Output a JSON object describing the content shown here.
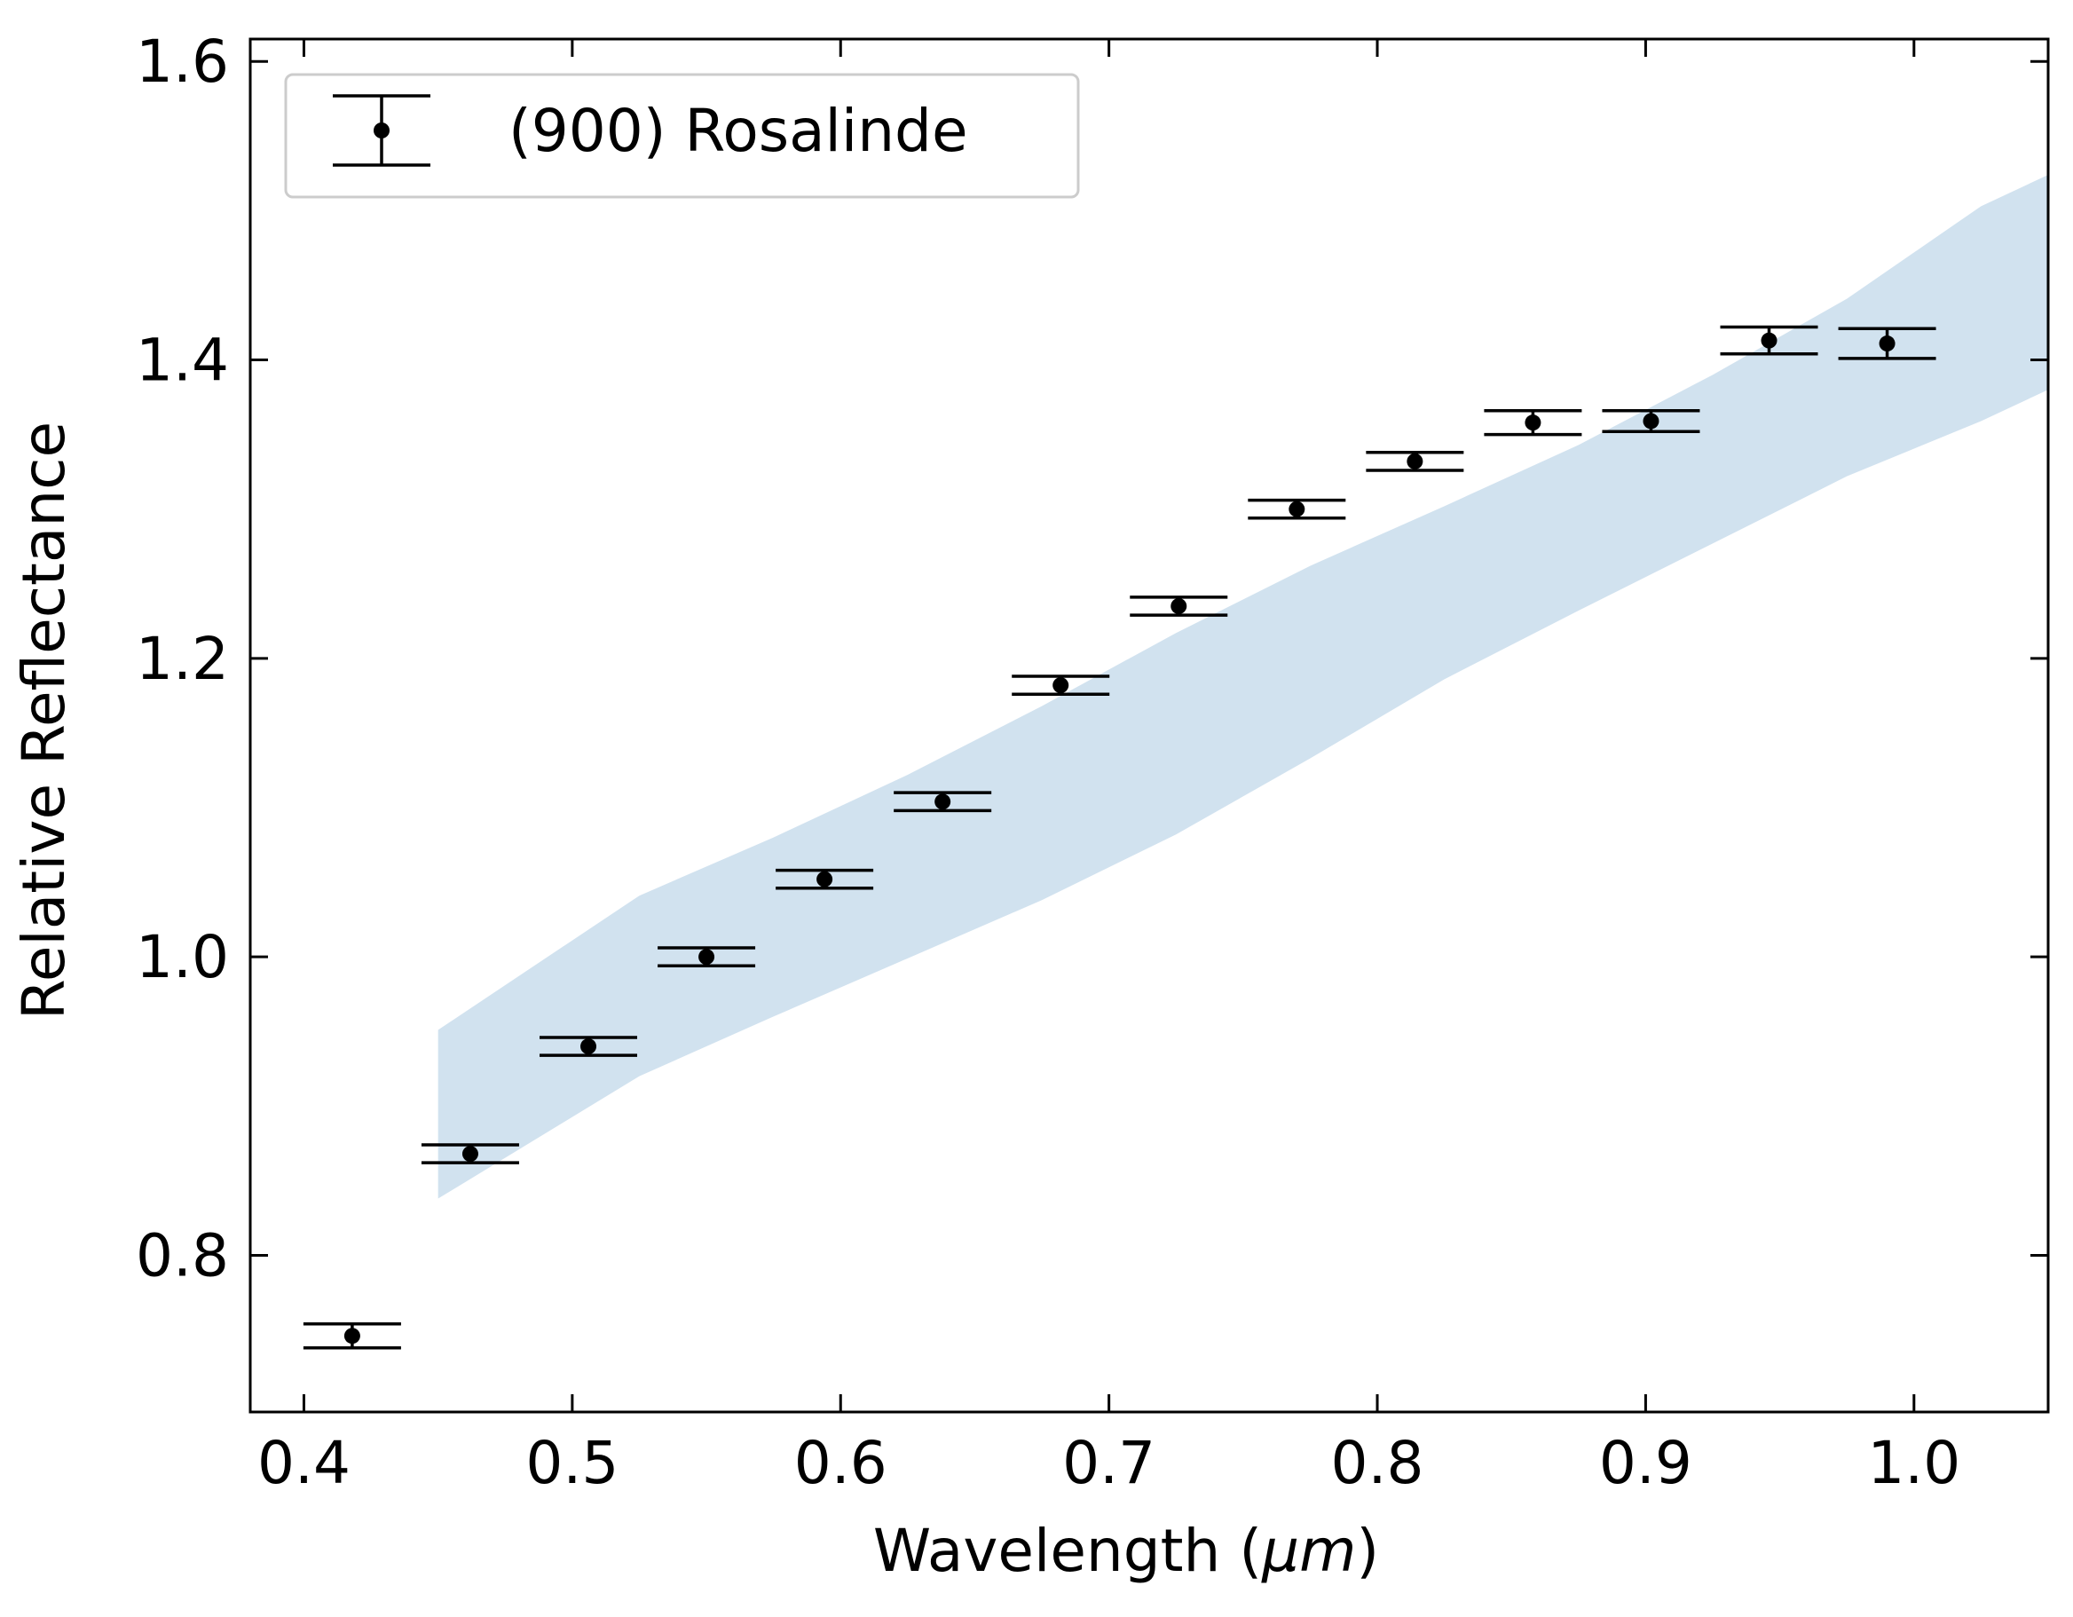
{
  "chart_data": {
    "type": "scatter",
    "xlabel_prefix": "Wavelength (",
    "xlabel_unit": "μm",
    "xlabel_suffix": ")",
    "ylabel": "Relative Reflectance",
    "xlim": [
      0.38,
      1.05
    ],
    "ylim": [
      0.695,
      1.615
    ],
    "xticks": [
      0.4,
      0.5,
      0.6,
      0.7,
      0.8,
      0.9,
      1.0
    ],
    "xtick_labels": [
      "0.4",
      "0.5",
      "0.6",
      "0.7",
      "0.8",
      "0.9",
      "1.0"
    ],
    "yticks": [
      0.8,
      1.0,
      1.2,
      1.4,
      1.6
    ],
    "ytick_labels": [
      "0.8",
      "1.0",
      "1.2",
      "1.4",
      "1.6"
    ],
    "grid": false,
    "legend_position": "top-left",
    "series": [
      {
        "name": "(900) Rosalinde",
        "color": "#000000",
        "x": [
          0.418,
          0.462,
          0.506,
          0.55,
          0.594,
          0.638,
          0.682,
          0.726,
          0.77,
          0.814,
          0.858,
          0.902,
          0.946,
          0.99
        ],
        "y": [
          0.746,
          0.868,
          0.94,
          1.0,
          1.052,
          1.104,
          1.182,
          1.235,
          1.3,
          1.332,
          1.358,
          1.359,
          1.413,
          1.411
        ],
        "yerr": [
          0.008,
          0.006,
          0.006,
          0.006,
          0.006,
          0.006,
          0.006,
          0.006,
          0.006,
          0.006,
          0.008,
          0.007,
          0.009,
          0.01
        ]
      }
    ],
    "band": {
      "color": "#d1e2ef",
      "x": [
        0.45,
        0.525,
        0.575,
        0.625,
        0.675,
        0.725,
        0.775,
        0.825,
        0.875,
        0.925,
        0.975,
        1.025,
        1.05
      ],
      "upper": [
        0.951,
        1.041,
        1.08,
        1.122,
        1.168,
        1.217,
        1.262,
        1.302,
        1.343,
        1.39,
        1.441,
        1.503,
        1.524
      ],
      "lower": [
        0.838,
        0.92,
        0.96,
        0.999,
        1.038,
        1.082,
        1.133,
        1.186,
        1.232,
        1.277,
        1.322,
        1.359,
        1.38
      ]
    }
  }
}
